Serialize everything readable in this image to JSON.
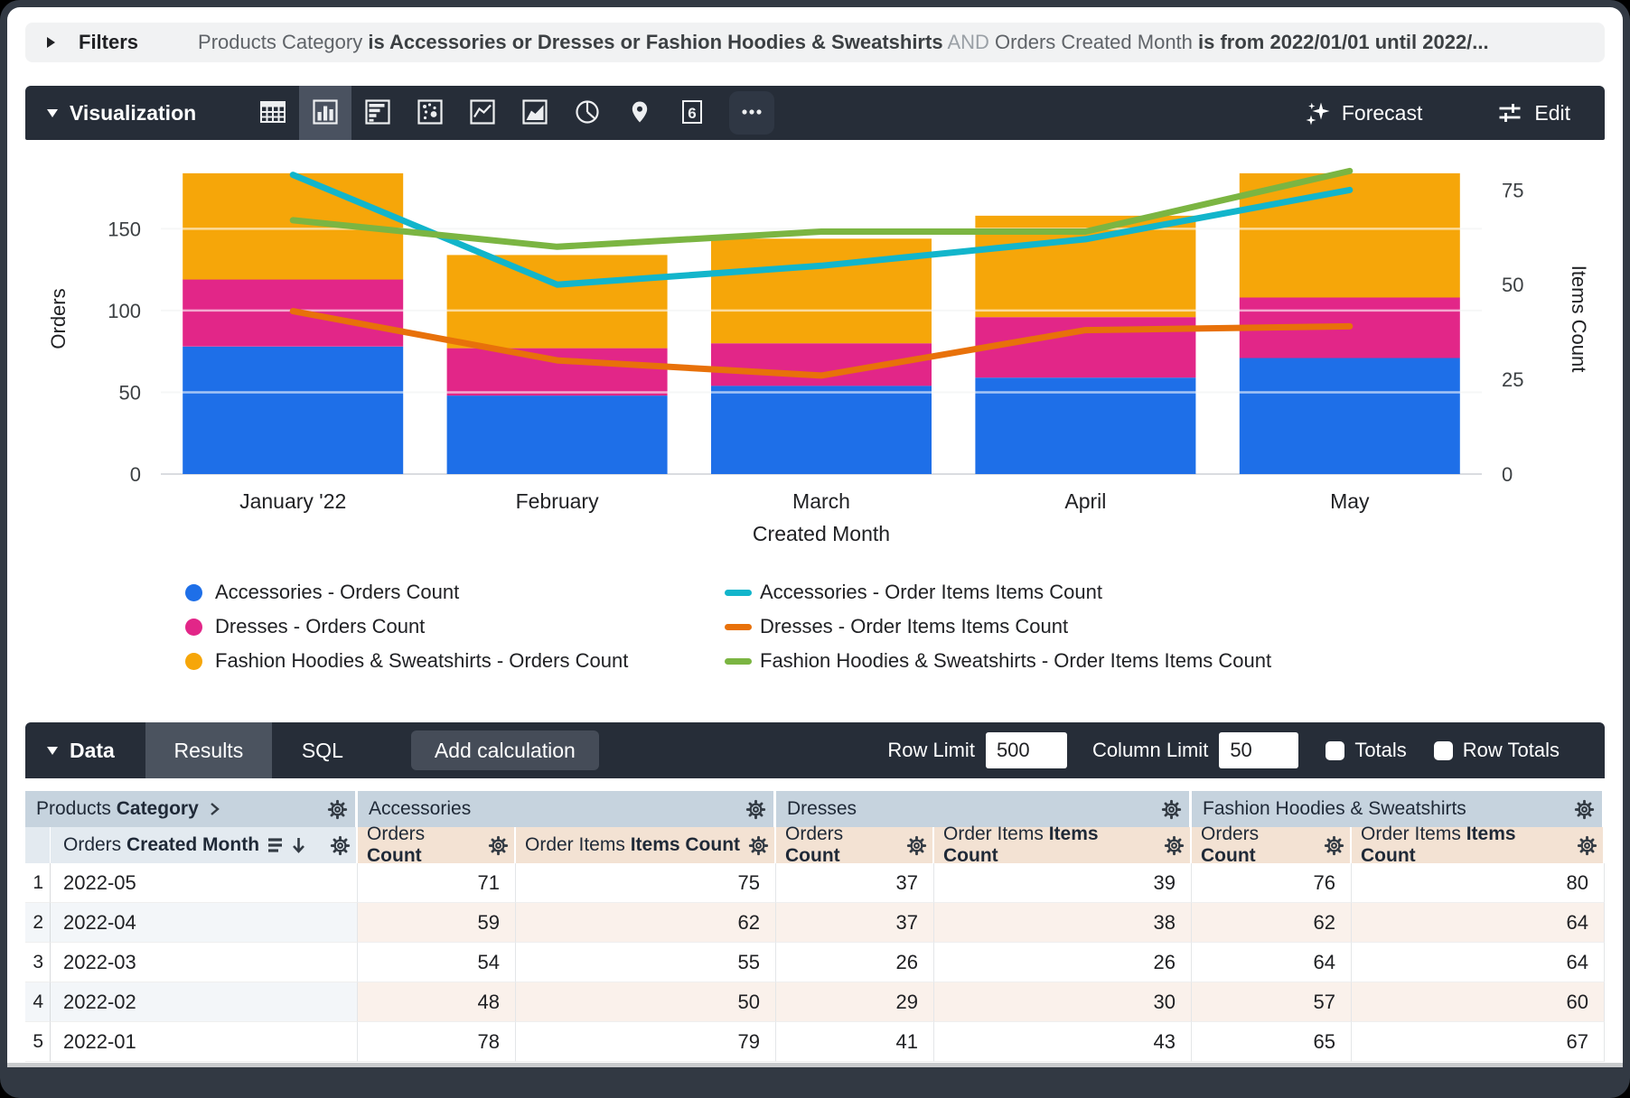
{
  "filters_bar": {
    "label": "Filters",
    "segments": [
      {
        "text": "Products Category ",
        "style": "dim"
      },
      {
        "text": "is Accessories or Dresses or Fashion Hoodies & Sweatshirts",
        "style": "strong"
      },
      {
        "text": " AND ",
        "style": "faint"
      },
      {
        "text": "Orders Created Month ",
        "style": "dim"
      },
      {
        "text": "is from 2022/01/01 until 2022/...",
        "style": "strong"
      }
    ]
  },
  "viz_toolbar": {
    "title": "Visualization",
    "icons": [
      {
        "name": "table",
        "selected": false
      },
      {
        "name": "column-chart",
        "selected": true
      },
      {
        "name": "bar-chart",
        "selected": false
      },
      {
        "name": "scatter",
        "selected": false
      },
      {
        "name": "line-chart",
        "selected": false
      },
      {
        "name": "area-chart",
        "selected": false
      },
      {
        "name": "pie-chart",
        "selected": false
      },
      {
        "name": "map",
        "selected": false
      },
      {
        "name": "single-value",
        "selected": false
      },
      {
        "name": "more",
        "selected": false
      }
    ],
    "forecast_label": "Forecast",
    "edit_label": "Edit"
  },
  "chart_data": {
    "type": "bar",
    "stacked": true,
    "grid": true,
    "categories": [
      "January '22",
      "February",
      "March",
      "April",
      "May"
    ],
    "xlabel": "Created Month",
    "ylabel_left": "Orders",
    "ylabel_right": "Items Count",
    "left_ticks": [
      0,
      50,
      100,
      150
    ],
    "right_ticks": [
      0,
      25,
      50,
      75
    ],
    "left_max": 190,
    "right_max": 82,
    "series": [
      {
        "name": "Accessories - Orders Count",
        "type": "bar",
        "axis": "left",
        "color": "#1E6FE8",
        "values": [
          78,
          48,
          54,
          59,
          71
        ]
      },
      {
        "name": "Dresses - Orders Count",
        "type": "bar",
        "axis": "left",
        "color": "#E22688",
        "values": [
          41,
          29,
          26,
          37,
          37
        ]
      },
      {
        "name": "Fashion Hoodies & Sweatshirts - Orders Count",
        "type": "bar",
        "axis": "left",
        "color": "#F6A609",
        "values": [
          65,
          57,
          64,
          62,
          76
        ]
      },
      {
        "name": "Accessories - Order Items Items Count",
        "type": "line",
        "axis": "right",
        "color": "#12B5CB",
        "values": [
          79,
          50,
          55,
          62,
          75
        ]
      },
      {
        "name": "Dresses - Order Items Items Count",
        "type": "line",
        "axis": "right",
        "color": "#E8710A",
        "values": [
          43,
          30,
          26,
          38,
          39
        ]
      },
      {
        "name": "Fashion Hoodies & Sweatshirts - Order Items Items Count",
        "type": "line",
        "axis": "right",
        "color": "#7BB542",
        "values": [
          67,
          60,
          64,
          64,
          80
        ]
      }
    ]
  },
  "legend": {
    "columns": [
      {
        "items": [
          {
            "label": "Accessories - Orders Count",
            "swatch": "circle",
            "color": "#1E6FE8"
          },
          {
            "label": "Dresses - Orders Count",
            "swatch": "circle",
            "color": "#E22688"
          },
          {
            "label": "Fashion Hoodies & Sweatshirts - Orders Count",
            "swatch": "circle",
            "color": "#F6A609"
          }
        ]
      },
      {
        "items": [
          {
            "label": "Accessories - Order Items Items Count",
            "swatch": "line",
            "color": "#12B5CB"
          },
          {
            "label": "Dresses - Order Items Items Count",
            "swatch": "line",
            "color": "#E8710A"
          },
          {
            "label": "Fashion Hoodies & Sweatshirts - Order Items Items Count",
            "swatch": "line",
            "color": "#7BB542"
          }
        ]
      }
    ]
  },
  "data_toolbar": {
    "title": "Data",
    "tabs": [
      {
        "label": "Results",
        "active": true
      },
      {
        "label": "SQL",
        "active": false
      }
    ],
    "add_calculation_label": "Add calculation",
    "row_limit_label": "Row Limit",
    "row_limit_value": "500",
    "column_limit_label": "Column Limit",
    "column_limit_value": "50",
    "totals_label": "Totals",
    "totals_checked": false,
    "row_totals_label": "Row Totals",
    "row_totals_checked": false
  },
  "table": {
    "group_headers": [
      {
        "text_regular": "Products ",
        "text_bold": "Category",
        "chevron": true
      },
      {
        "text_regular": "Accessories",
        "text_bold": "",
        "chevron": false
      },
      {
        "text_regular": "Dresses",
        "text_bold": "",
        "chevron": false
      },
      {
        "text_regular": "Fashion Hoodies & Sweatshirts",
        "text_bold": "",
        "chevron": false
      }
    ],
    "dimension_header": {
      "text_regular": "Orders ",
      "text_bold": "Created Month"
    },
    "measure_headers": [
      {
        "text_regular": "Orders ",
        "text_bold": "Count"
      },
      {
        "text_regular": "Order Items ",
        "text_bold": "Items Count"
      },
      {
        "text_regular": "Orders ",
        "text_bold": "Count"
      },
      {
        "text_regular": "Order Items ",
        "text_bold": "Items Count"
      },
      {
        "text_regular": "Orders ",
        "text_bold": "Count"
      },
      {
        "text_regular": "Order Items ",
        "text_bold": "Items Count"
      }
    ],
    "rows": [
      {
        "index": "1",
        "dimension": "2022-05",
        "values": [
          "71",
          "75",
          "37",
          "39",
          "76",
          "80"
        ]
      },
      {
        "index": "2",
        "dimension": "2022-04",
        "values": [
          "59",
          "62",
          "37",
          "38",
          "62",
          "64"
        ]
      },
      {
        "index": "3",
        "dimension": "2022-03",
        "values": [
          "54",
          "55",
          "26",
          "26",
          "64",
          "64"
        ]
      },
      {
        "index": "4",
        "dimension": "2022-02",
        "values": [
          "48",
          "50",
          "29",
          "30",
          "57",
          "60"
        ]
      },
      {
        "index": "5",
        "dimension": "2022-01",
        "values": [
          "78",
          "79",
          "41",
          "43",
          "65",
          "67"
        ]
      }
    ]
  }
}
